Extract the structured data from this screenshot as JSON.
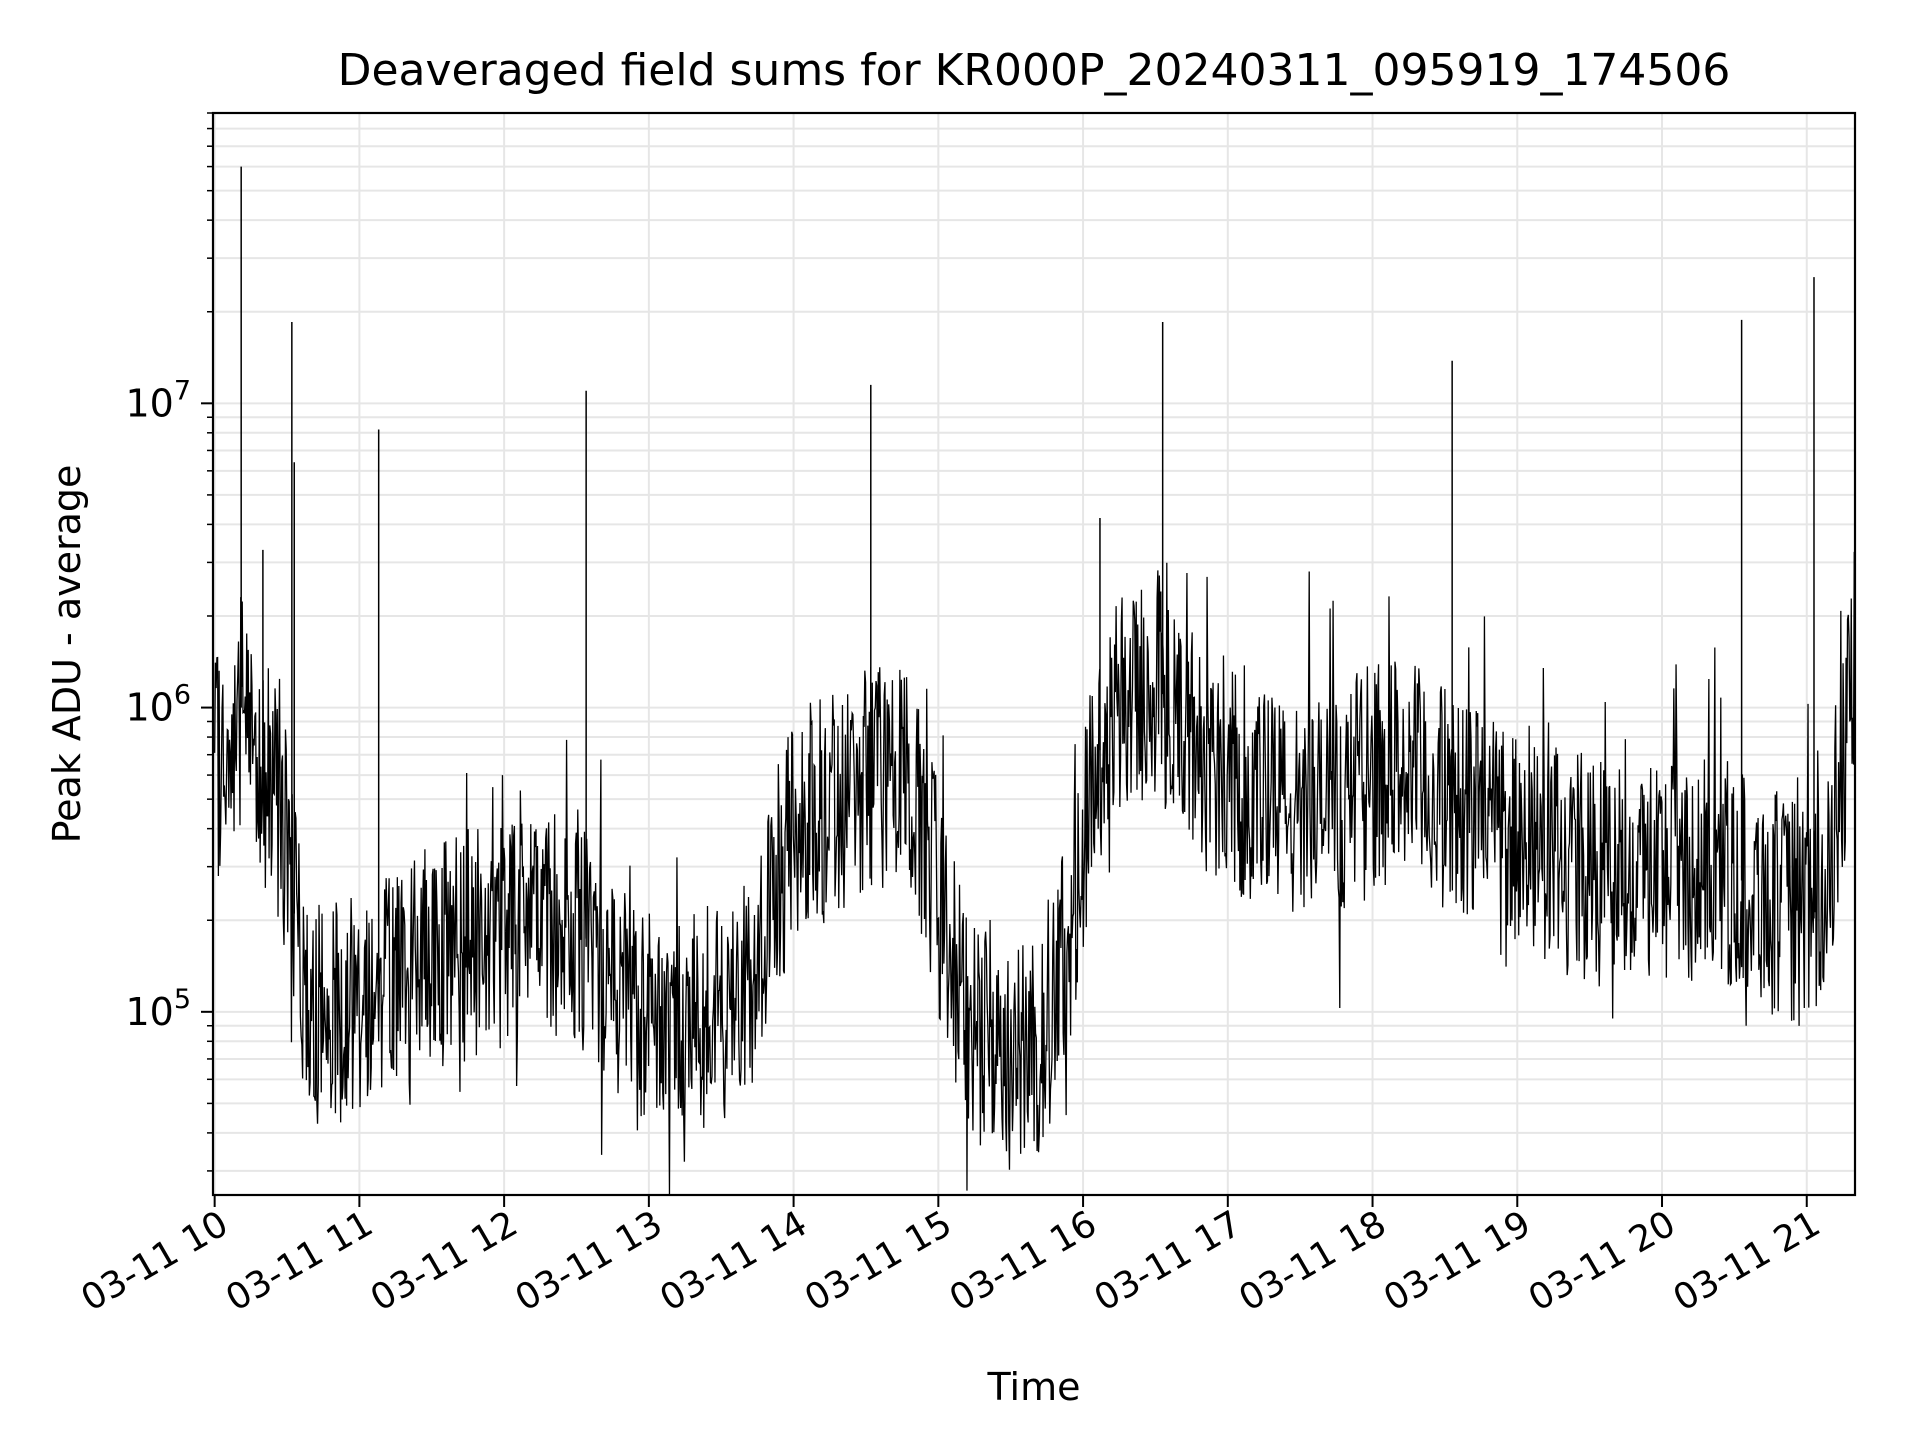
{
  "chart_data": {
    "type": "line",
    "title": "Deaveraged field sums for KR000P_20240311_095919_174506",
    "xlabel": "Time",
    "ylabel": "Peak ADU - average",
    "x_axis": {
      "type": "datetime",
      "min": "2024-03-11T09:59:19",
      "max": "2024-03-11T21:20:00",
      "ticks": [
        "2024-03-11T10:00",
        "2024-03-11T11:00",
        "2024-03-11T12:00",
        "2024-03-11T13:00",
        "2024-03-11T14:00",
        "2024-03-11T15:00",
        "2024-03-11T16:00",
        "2024-03-11T17:00",
        "2024-03-11T18:00",
        "2024-03-11T19:00",
        "2024-03-11T20:00",
        "2024-03-11T21:00"
      ],
      "tick_labels": [
        "03-11 10",
        "03-11 11",
        "03-11 12",
        "03-11 13",
        "03-11 14",
        "03-11 15",
        "03-11 16",
        "03-11 17",
        "03-11 18",
        "03-11 19",
        "03-11 20",
        "03-11 21"
      ]
    },
    "y_axis": {
      "scale": "log",
      "range": [
        25000,
        90000000
      ],
      "ticks": [
        100000,
        1000000,
        10000000
      ],
      "tick_base": "10",
      "tick_exponents": [
        "5",
        "6",
        "7"
      ]
    },
    "grid": true,
    "line_color": "#000000",
    "series": [
      {
        "x": [
          "2024-03-11T10:00",
          "2024-03-11T10:05",
          "2024-03-11T10:11",
          "2024-03-11T10:17",
          "2024-03-11T10:25",
          "2024-03-11T10:30",
          "2024-03-11T10:35",
          "2024-03-11T10:40",
          "2024-03-11T10:45",
          "2024-03-11T10:55",
          "2024-03-11T11:05",
          "2024-03-11T11:30",
          "2024-03-11T12:00",
          "2024-03-11T12:20",
          "2024-03-11T12:40",
          "2024-03-11T13:00",
          "2024-03-11T13:20",
          "2024-03-11T13:40",
          "2024-03-11T14:00",
          "2024-03-11T14:20",
          "2024-03-11T14:35",
          "2024-03-11T14:50",
          "2024-03-11T15:10",
          "2024-03-11T15:30",
          "2024-03-11T15:45",
          "2024-03-11T15:55",
          "2024-03-11T16:10",
          "2024-03-11T16:30",
          "2024-03-11T16:50",
          "2024-03-11T17:10",
          "2024-03-11T17:30",
          "2024-03-11T17:50",
          "2024-03-11T18:10",
          "2024-03-11T18:30",
          "2024-03-11T18:50",
          "2024-03-11T19:10",
          "2024-03-11T19:30",
          "2024-03-11T19:50",
          "2024-03-11T20:10",
          "2024-03-11T20:30",
          "2024-03-11T20:50",
          "2024-03-11T21:05",
          "2024-03-11T21:15",
          "2024-03-11T21:20"
        ],
        "y": [
          600000,
          700000,
          1000000,
          800000,
          500000,
          350000,
          150000,
          100000,
          100000,
          110000,
          120000,
          150000,
          180000,
          200000,
          150000,
          100000,
          90000,
          110000,
          400000,
          500000,
          600000,
          550000,
          100000,
          80000,
          75000,
          200000,
          1000000,
          1200000,
          700000,
          500000,
          450000,
          500000,
          650000,
          500000,
          450000,
          350000,
          300000,
          300000,
          300000,
          280000,
          220000,
          200000,
          600000,
          1700000
        ]
      }
    ],
    "spikes": {
      "x": [
        "2024-03-11T10:11",
        "2024-03-11T10:32",
        "2024-03-11T10:33",
        "2024-03-11T11:08",
        "2024-03-11T12:34",
        "2024-03-11T14:32",
        "2024-03-11T16:33",
        "2024-03-11T18:33",
        "2024-03-11T20:33",
        "2024-03-11T21:03",
        "2024-03-11T10:20",
        "2024-03-11T16:07"
      ],
      "y": [
        60000000,
        18500000,
        6400000,
        8200000,
        11000000,
        11500000,
        18500000,
        13800000,
        18800000,
        26000000,
        3300000,
        4200000
      ]
    }
  }
}
